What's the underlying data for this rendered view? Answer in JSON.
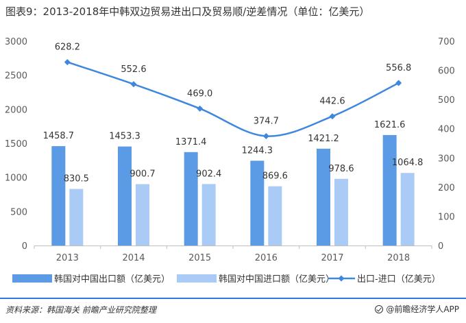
{
  "title": "图表9：2013-2018年中韩双边贸易进出口及贸易顺/逆差情况（单位：亿美元）",
  "source": "资料来源：韩国海关 前瞻产业研究院整理",
  "brand": "@前瞻经济学人APP",
  "colors": {
    "exports": "#5b9be6",
    "imports": "#a9cbf5",
    "balance": "#3d87df",
    "footer_rule": "#2b7bd6"
  },
  "chart_data": {
    "type": "bar",
    "categories": [
      "2013",
      "2014",
      "2015",
      "2016",
      "2017",
      "2018"
    ],
    "series": [
      {
        "name": "韩国对中国出口额（亿美元）",
        "kind": "bar",
        "axis": "left",
        "values": [
          1458.7,
          1453.3,
          1371.4,
          1244.3,
          1421.2,
          1621.6
        ],
        "labels": [
          "1458.7",
          "1453.3",
          "1371.4",
          "1244.3",
          "1421.2",
          "1621.6"
        ]
      },
      {
        "name": "韩国对中国进口额（亿美元）",
        "kind": "bar",
        "axis": "left",
        "values": [
          830.5,
          900.7,
          902.4,
          869.6,
          978.6,
          1064.8
        ],
        "labels": [
          "830.5",
          "900.7",
          "902.4",
          "869.6",
          "978.6",
          "1064.8"
        ]
      },
      {
        "name": "出口-进口（亿美元）",
        "kind": "line",
        "axis": "right",
        "values": [
          628.2,
          552.6,
          469.0,
          374.7,
          442.6,
          556.8
        ],
        "labels": [
          "628.2",
          "552.6",
          "469.0",
          "374.7",
          "442.6",
          "556.8"
        ]
      }
    ],
    "y_left": {
      "range": [
        0,
        3000
      ],
      "ticks": [
        "0",
        "500",
        "1000",
        "1500",
        "2000",
        "2500",
        "3000"
      ]
    },
    "y_right": {
      "range": [
        0,
        700
      ],
      "ticks": [
        "0",
        "100",
        "200",
        "300",
        "400",
        "500",
        "600",
        "700"
      ]
    },
    "grid": false,
    "legend": "bottom"
  }
}
